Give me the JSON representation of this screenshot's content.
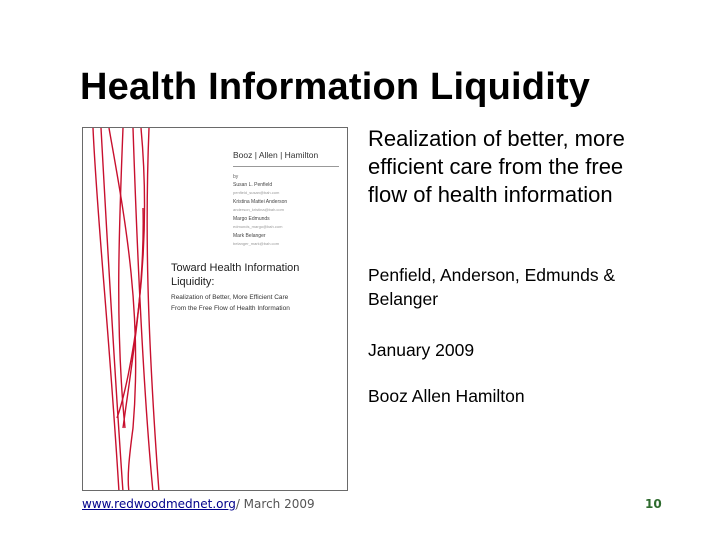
{
  "slide": {
    "title": "Health Information Liquidity",
    "lead": "Realization of better, more efficient care from the free flow of health information",
    "authors": "Penfield, Anderson, Edmunds & Belanger",
    "date": "January 2009",
    "organization": "Booz Allen Hamilton"
  },
  "cover": {
    "brand": "Booz | Allen | Hamilton",
    "by": "by",
    "authors": [
      {
        "name": "Susan L. Penfield",
        "email": "penfield_susan@bah.com"
      },
      {
        "name": "Kristina Mattei Anderson",
        "email": "anderson_kristina@bah.com"
      },
      {
        "name": "Margo Edmunds",
        "email": "edmunds_margo@bah.com"
      },
      {
        "name": "Mark Belanger",
        "email": "belanger_mark@bah.com"
      }
    ],
    "title_line1": "Toward Health Information",
    "title_line2": "Liquidity:",
    "subtitle_line1": "Realization of Better, More Efficient Care",
    "subtitle_line2": "From the Free Flow of Health Information"
  },
  "footer": {
    "link_text": "www.redwoodmednet.org",
    "suffix": "/  March 2009",
    "page_number": "10"
  },
  "colors": {
    "cover_lines": "#c8102e",
    "link": "#00008b",
    "page_number": "#2e6b2e"
  }
}
